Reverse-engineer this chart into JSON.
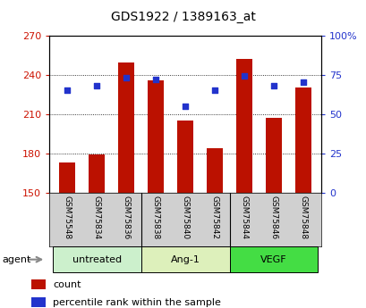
{
  "title": "GDS1922 / 1389163_at",
  "categories": [
    "GSM75548",
    "GSM75834",
    "GSM75836",
    "GSM75838",
    "GSM75840",
    "GSM75842",
    "GSM75844",
    "GSM75846",
    "GSM75848"
  ],
  "count_values": [
    173,
    179,
    249,
    236,
    205,
    184,
    252,
    207,
    230
  ],
  "percentile_values": [
    65,
    68,
    73,
    72,
    55,
    65,
    74,
    68,
    70
  ],
  "ymin": 150,
  "ymax": 270,
  "yticks": [
    150,
    180,
    210,
    240,
    270
  ],
  "y2min": 0,
  "y2max": 100,
  "y2ticks": [
    0,
    25,
    50,
    75,
    100
  ],
  "bar_color": "#bb1100",
  "dot_color": "#2233cc",
  "groups": [
    {
      "label": "untreated",
      "start": 0,
      "end": 3,
      "color": "#ccf0cc"
    },
    {
      "label": "Ang-1",
      "start": 3,
      "end": 6,
      "color": "#ddf0bb"
    },
    {
      "label": "VEGF",
      "start": 6,
      "end": 9,
      "color": "#44dd44"
    }
  ],
  "agent_label": "agent",
  "legend_count_label": "count",
  "legend_pct_label": "percentile rank within the sample",
  "bar_label_color": "#cc1100",
  "y2label_color": "#2233cc",
  "background_plot": "#ffffff",
  "tick_area_bg": "#d0d0d0",
  "title_fontsize": 10
}
